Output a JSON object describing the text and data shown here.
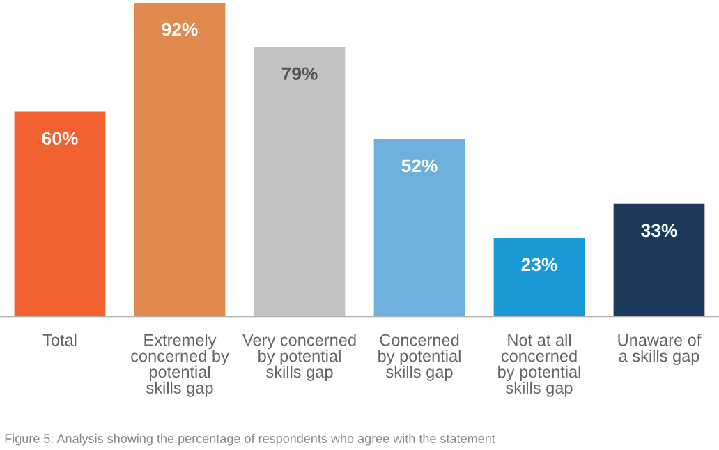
{
  "chart_data": {
    "type": "bar",
    "categories": [
      "Total",
      "Extremely\nconcerned by\npotential\nskills gap",
      "Very concerned\nby potential\nskills gap",
      "Concerned\nby potential\nskills gap",
      "Not at all\nconcerned\nby potential\nskills gap",
      "Unaware of\na skills gap"
    ],
    "values": [
      60,
      92,
      79,
      52,
      23,
      33
    ],
    "colors": [
      "#f26130",
      "#e08a50",
      "#c1c3c3",
      "#6db0db",
      "#1b9ad8",
      "#1c3a5c"
    ],
    "value_labels": [
      "60%",
      "92%",
      "79%",
      "52%",
      "23%",
      "33%"
    ],
    "annotations": [
      "Figure 5: Analysis showing the percentage of respondents who agree with the statement"
    ]
  }
}
